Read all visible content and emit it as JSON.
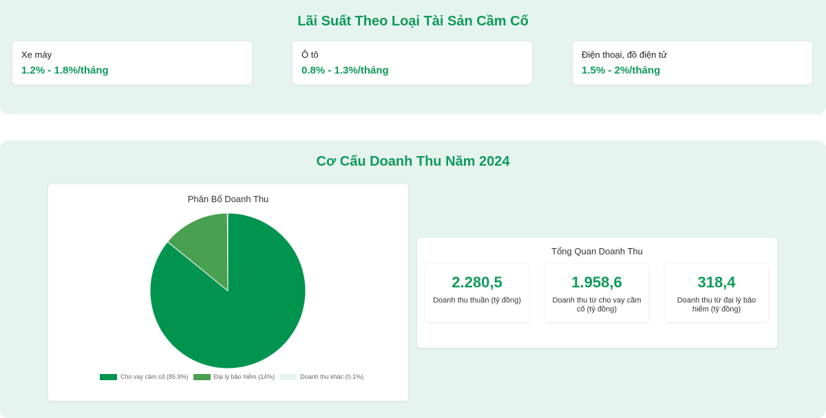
{
  "rates_section": {
    "title": "Lãi Suất Theo Loại Tài Sản Cầm Cố",
    "cards": [
      {
        "asset": "Xe máy",
        "rate": "1.2% - 1.8%/tháng"
      },
      {
        "asset": "Ô tô",
        "rate": "0.8% - 1.3%/tháng"
      },
      {
        "asset": "Điện thoại, đồ điện tử",
        "rate": "1.5% - 2%/tháng"
      }
    ]
  },
  "revenue_section": {
    "title": "Cơ Cấu Doanh Thu Năm 2024",
    "overview": {
      "title": "Tổng Quan Doanh Thu",
      "metrics": [
        {
          "value": "2.280,5",
          "label": "Doanh thu thuần (tỷ đồng)"
        },
        {
          "value": "1.958,6",
          "label": "Doanh thu từ cho vay cầm cố (tỷ đồng)"
        },
        {
          "value": "318,4",
          "label": "Doanh thu từ đại lý bảo hiểm (tỷ đồng)"
        }
      ]
    }
  },
  "colors": {
    "accent": "#0f9a5a",
    "panel_bg": "#e6f4ef"
  },
  "chart_data": {
    "type": "pie",
    "title": "Phân Bổ Doanh Thu",
    "categories": [
      "Cho vay cầm cố",
      "Đại lý bảo hiểm",
      "Doanh thu khác"
    ],
    "values": [
      85.9,
      14,
      0.1
    ],
    "legend_labels": [
      "Cho vay cầm cố (85.9%)",
      "Đại lý bảo hiểm (14%)",
      "Doanh thu khác (0.1%)"
    ],
    "colors": [
      "#00944f",
      "#48a050",
      "#e6f4ef"
    ],
    "legend_position": "bottom"
  }
}
